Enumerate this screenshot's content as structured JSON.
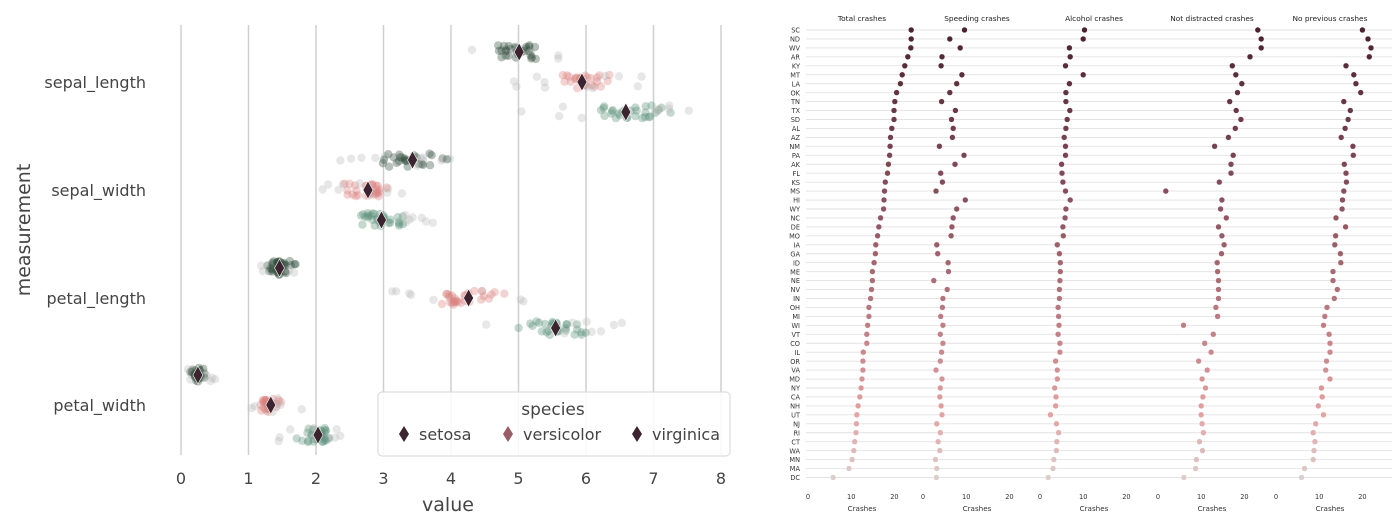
{
  "chart_data": [
    {
      "type": "scatter",
      "xlabel": "value",
      "ylabel": "measurement",
      "xlim": [
        -0.2,
        8.2
      ],
      "x_ticks": [
        "0",
        "1",
        "2",
        "3",
        "4",
        "5",
        "6",
        "7",
        "8"
      ],
      "categories": [
        "sepal_length",
        "sepal_width",
        "petal_length",
        "petal_width"
      ],
      "grid": "vertical",
      "legend": {
        "title": "species",
        "placement": "bottom-right",
        "entries": [
          "setosa",
          "versicolor",
          "virginica"
        ]
      },
      "series": [
        {
          "name": "setosa",
          "color": "#2e4a3a",
          "mean_color": "#3b2430",
          "means": [
            5.01,
            3.43,
            1.46,
            0.25
          ],
          "ranges": [
            [
              4.3,
              5.8
            ],
            [
              2.3,
              4.4
            ],
            [
              1.0,
              1.9
            ],
            [
              0.1,
              0.6
            ]
          ]
        },
        {
          "name": "versicolor",
          "color": "#d9807e",
          "mean_color": "#3b2430",
          "means": [
            5.94,
            2.77,
            4.26,
            1.33
          ],
          "ranges": [
            [
              4.9,
              7.0
            ],
            [
              2.0,
              3.4
            ],
            [
              3.0,
              5.1
            ],
            [
              1.0,
              1.8
            ]
          ]
        },
        {
          "name": "virginica",
          "color": "#5a8f78",
          "mean_color": "#3b2430",
          "means": [
            6.59,
            2.97,
            5.55,
            2.03
          ],
          "ranges": [
            [
              4.9,
              7.9
            ],
            [
              2.2,
              3.8
            ],
            [
              4.5,
              6.9
            ],
            [
              1.4,
              2.5
            ]
          ]
        }
      ]
    },
    {
      "type": "scatter",
      "xlabel": "Crashes",
      "xlim": [
        0,
        25
      ],
      "x_ticks": [
        "0",
        "10",
        "20"
      ],
      "panel_titles": [
        "Total crashes",
        "Speeding crashes",
        "Alcohol crashes",
        "Not distracted crashes",
        "No previous crashes"
      ],
      "states": [
        "SC",
        "ND",
        "WV",
        "AR",
        "KY",
        "MT",
        "LA",
        "OK",
        "TN",
        "TX",
        "SD",
        "AL",
        "AZ",
        "NM",
        "PA",
        "AK",
        "FL",
        "KS",
        "MS",
        "HI",
        "WY",
        "NC",
        "DE",
        "MO",
        "IA",
        "GA",
        "ID",
        "ME",
        "NE",
        "NV",
        "IN",
        "OH",
        "MI",
        "WI",
        "VT",
        "CO",
        "IL",
        "OR",
        "VA",
        "MD",
        "NY",
        "CA",
        "NH",
        "UT",
        "NJ",
        "RI",
        "CT",
        "WA",
        "MN",
        "MA",
        "DC"
      ],
      "values": [
        [
          23.9,
          23.9,
          23.8,
          23.1,
          22.4,
          21.8,
          21.4,
          20.5,
          20.1,
          19.9,
          19.9,
          19.4,
          19.1,
          19.0,
          18.9,
          18.6,
          18.4,
          17.9,
          17.7,
          17.6,
          17.5,
          16.8,
          16.4,
          16.1,
          15.7,
          15.6,
          15.3,
          14.9,
          14.9,
          14.7,
          14.5,
          14.1,
          14.1,
          13.8,
          13.6,
          13.6,
          12.8,
          12.7,
          12.7,
          12.5,
          12.3,
          12.0,
          11.6,
          11.3,
          11.2,
          11.1,
          10.8,
          10.6,
          10.2,
          9.5,
          5.8
        ],
        [
          9.6,
          6.2,
          8.6,
          4.4,
          4.2,
          9.0,
          7.8,
          6.2,
          4.3,
          7.5,
          6.6,
          7.0,
          6.8,
          3.8,
          9.5,
          7.4,
          4.1,
          4.5,
          3.0,
          9.8,
          7.8,
          7.0,
          6.7,
          6.5,
          3.2,
          3.4,
          5.8,
          5.9,
          2.5,
          5.6,
          4.6,
          4.5,
          4.1,
          4.6,
          4.0,
          4.6,
          4.3,
          4.0,
          3.0,
          4.4,
          4.0,
          3.9,
          4.2,
          4.4,
          3.2,
          4.0,
          3.5,
          3.9,
          2.9,
          3.2,
          3.1
        ],
        [
          10.3,
          10.0,
          6.8,
          7.0,
          5.9,
          10.0,
          6.8,
          6.0,
          6.0,
          6.9,
          6.3,
          6.0,
          5.6,
          5.9,
          5.9,
          5.0,
          5.1,
          5.3,
          5.9,
          7.0,
          6.0,
          5.8,
          5.3,
          5.4,
          4.0,
          4.5,
          4.7,
          4.7,
          4.6,
          4.5,
          4.5,
          4.2,
          4.3,
          4.4,
          4.2,
          4.6,
          4.6,
          3.6,
          4.0,
          4.0,
          3.4,
          3.7,
          3.6,
          2.4,
          3.8,
          4.3,
          3.9,
          3.8,
          3.2,
          3.0,
          1.9
        ],
        [
          23.1,
          23.9,
          23.9,
          21.3,
          17.2,
          18.0,
          19.4,
          18.4,
          16.6,
          18.1,
          19.2,
          17.9,
          16.3,
          13.1,
          17.4,
          16.9,
          16.9,
          14.2,
          1.8,
          14.8,
          14.5,
          15.8,
          14.0,
          14.8,
          15.3,
          14.7,
          13.7,
          13.8,
          14.0,
          14.0,
          14.0,
          13.4,
          13.8,
          5.9,
          12.8,
          10.8,
          12.3,
          9.4,
          11.4,
          10.2,
          11.0,
          10.4,
          10.0,
          10.0,
          10.2,
          10.5,
          9.6,
          10.3,
          8.9,
          8.7,
          6.0
        ],
        [
          20.0,
          21.3,
          22.0,
          21.6,
          16.2,
          18.0,
          18.5,
          19.6,
          15.7,
          17.2,
          16.7,
          16.0,
          15.1,
          17.8,
          17.9,
          15.8,
          16.2,
          16.3,
          15.7,
          15.4,
          15.3,
          13.9,
          16.1,
          13.8,
          13.6,
          14.9,
          15.0,
          13.2,
          13.2,
          14.2,
          13.5,
          11.8,
          11.3,
          11.0,
          12.3,
          12.5,
          12.5,
          11.7,
          11.5,
          12.5,
          10.5,
          10.7,
          9.8,
          11.0,
          9.2,
          8.6,
          9.0,
          8.8,
          8.6,
          6.6,
          5.9
        ]
      ]
    }
  ]
}
